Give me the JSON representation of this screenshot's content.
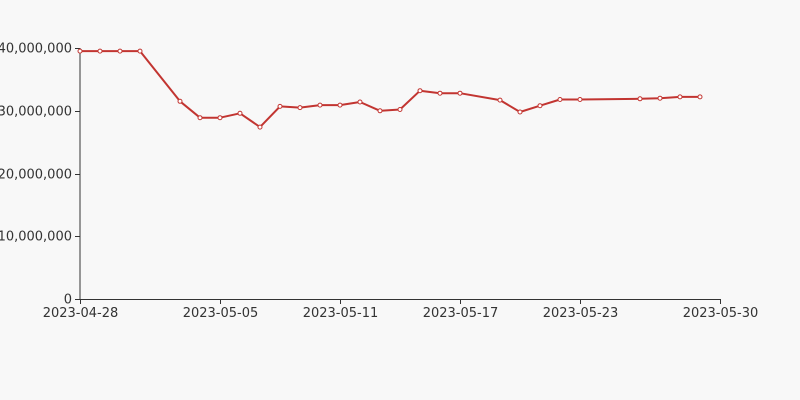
{
  "chart_data": {
    "type": "line",
    "title": "",
    "xlabel": "",
    "ylabel": "",
    "x": [
      "2023-04-28",
      "2023-04-29",
      "2023-04-30",
      "2023-05-01",
      "2023-05-03",
      "2023-05-04",
      "2023-05-05",
      "2023-05-06",
      "2023-05-07",
      "2023-05-08",
      "2023-05-09",
      "2023-05-10",
      "2023-05-11",
      "2023-05-12",
      "2023-05-13",
      "2023-05-14",
      "2023-05-15",
      "2023-05-16",
      "2023-05-17",
      "2023-05-19",
      "2023-05-20",
      "2023-05-21",
      "2023-05-22",
      "2023-05-23",
      "2023-05-26",
      "2023-05-27",
      "2023-05-28",
      "2023-05-29"
    ],
    "series": [
      {
        "name": "",
        "color": "#c23531",
        "values": [
          39500000,
          39500000,
          39500000,
          39500000,
          31500000,
          28900000,
          28900000,
          29600000,
          27400000,
          30700000,
          30500000,
          30900000,
          30900000,
          31400000,
          30000000,
          30200000,
          33200000,
          32800000,
          32800000,
          31700000,
          29800000,
          30800000,
          31800000,
          31800000,
          31900000,
          32000000,
          32200000,
          32200000
        ]
      }
    ],
    "x_ticks": [
      "2023-04-28",
      "2023-05-05",
      "2023-05-11",
      "2023-05-17",
      "2023-05-23",
      "2023-05-30"
    ],
    "y_ticks": [
      "0",
      "10,000,000",
      "20,000,000",
      "30,000,000",
      "40,000,000"
    ],
    "ylim": [
      0,
      40000000
    ],
    "grid": false,
    "legend": "none"
  }
}
